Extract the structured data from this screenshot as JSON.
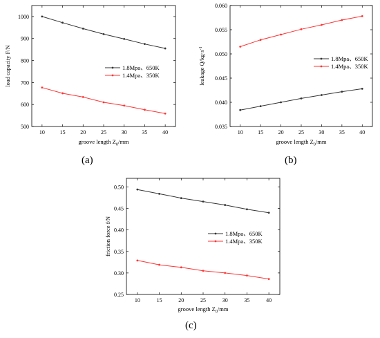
{
  "chart_data": [
    {
      "panel": "a",
      "caption": "(a)",
      "type": "line",
      "xlabel": "groove length Z",
      "xlabel_sub": "0",
      "xlabel_tail": "/mm",
      "ylabel": "load capacity F/N",
      "x": [
        10,
        15,
        20,
        25,
        30,
        35,
        40
      ],
      "xticks": [
        "10",
        "15",
        "20",
        "25",
        "30",
        "35",
        "40"
      ],
      "xlim": [
        7.5,
        42.5
      ],
      "ylim": [
        500,
        1050
      ],
      "yticks": [
        500,
        600,
        700,
        800,
        900,
        1000
      ],
      "ytick_labels": [
        "500",
        "600",
        "700",
        "800",
        "900",
        "1000"
      ],
      "legend_position": "middle-right",
      "series": [
        {
          "name": "1.8Mpa、650K",
          "color": "#333333",
          "values": [
            1000,
            972,
            945,
            920,
            898,
            875,
            855
          ]
        },
        {
          "name": "1.4Mpa、350K",
          "color": "#ff3333",
          "values": [
            677,
            651,
            634,
            610,
            595,
            576,
            559
          ]
        }
      ]
    },
    {
      "panel": "b",
      "caption": "(b)",
      "type": "line",
      "xlabel": "groove length Z",
      "xlabel_sub": "0",
      "xlabel_tail": "/mm",
      "ylabel": "leakage Q/kg·s",
      "ylabel_sup": "-1",
      "x": [
        10,
        15,
        20,
        25,
        30,
        35,
        40
      ],
      "xticks": [
        "10",
        "15",
        "20",
        "25",
        "30",
        "35",
        "40"
      ],
      "xlim": [
        7.5,
        42.5
      ],
      "ylim": [
        0.035,
        0.06
      ],
      "yticks": [
        0.035,
        0.04,
        0.045,
        0.05,
        0.055,
        0.06
      ],
      "ytick_labels": [
        "0.035",
        "0.040",
        "0.045",
        "0.050",
        "0.055",
        "0.060"
      ],
      "legend_position": "upper-middle-right",
      "series": [
        {
          "name": "1.8Mpa、650K",
          "color": "#333333",
          "values": [
            0.0384,
            0.0392,
            0.04,
            0.0408,
            0.0415,
            0.0422,
            0.0428
          ]
        },
        {
          "name": "1.4Mpa、350K",
          "color": "#ff3333",
          "values": [
            0.0515,
            0.0529,
            0.054,
            0.0551,
            0.056,
            0.057,
            0.0578
          ]
        }
      ]
    },
    {
      "panel": "c",
      "caption": "(c)",
      "type": "line",
      "xlabel": "groove length Z",
      "xlabel_sub": "0",
      "xlabel_tail": "/mm",
      "ylabel": "friction force f/N",
      "x": [
        10,
        15,
        20,
        25,
        30,
        35,
        40
      ],
      "xticks": [
        "10",
        "15",
        "20",
        "25",
        "30",
        "35",
        "40"
      ],
      "xlim": [
        7.5,
        42.5
      ],
      "ylim": [
        0.25,
        0.52
      ],
      "yticks": [
        0.25,
        0.3,
        0.35,
        0.4,
        0.45,
        0.5
      ],
      "ytick_labels": [
        "0.25",
        "0.30",
        "0.35",
        "0.40",
        "0.45",
        "0.50"
      ],
      "legend_position": "middle-right",
      "series": [
        {
          "name": "1.8Mpa、650K",
          "color": "#333333",
          "values": [
            0.494,
            0.484,
            0.474,
            0.466,
            0.458,
            0.448,
            0.44
          ]
        },
        {
          "name": "1.4Mpa、350K",
          "color": "#ff3333",
          "values": [
            0.329,
            0.319,
            0.313,
            0.305,
            0.3,
            0.294,
            0.286
          ]
        }
      ]
    }
  ]
}
